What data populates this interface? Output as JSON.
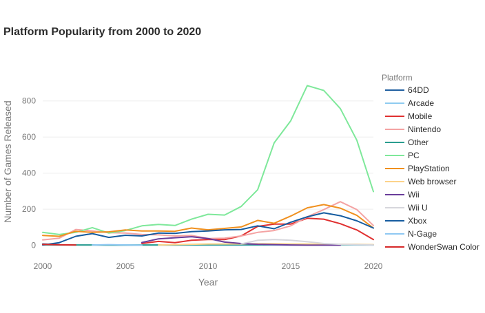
{
  "chart_data": {
    "type": "line",
    "title": "Platform Popularity from 2000 to 2020",
    "xlabel": "Year",
    "ylabel": "Number of Games Released",
    "xlim": [
      2000,
      2020
    ],
    "ylim": [
      -28,
      940
    ],
    "x_ticks": [
      2000,
      2005,
      2010,
      2015,
      2020
    ],
    "y_ticks": [
      0,
      200,
      400,
      600,
      800
    ],
    "grid": true,
    "legend": {
      "title": "Platform",
      "placement": "right"
    },
    "x": [
      2000,
      2001,
      2002,
      2003,
      2004,
      2005,
      2006,
      2007,
      2008,
      2009,
      2010,
      2011,
      2012,
      2013,
      2014,
      2015,
      2016,
      2017,
      2018,
      2019,
      2020
    ],
    "series": [
      {
        "name": "64DD",
        "color": "#1f5fa0",
        "values": [
          8,
          4,
          null,
          null,
          null,
          null,
          null,
          null,
          null,
          null,
          null,
          null,
          null,
          null,
          null,
          null,
          null,
          null,
          null,
          null,
          null
        ]
      },
      {
        "name": "Arcade",
        "color": "#8ecbf0",
        "values": [
          4,
          3,
          2,
          2,
          2,
          2,
          1,
          2,
          1,
          1,
          1,
          1,
          1,
          1,
          1,
          1,
          2,
          3,
          3,
          2,
          1
        ]
      },
      {
        "name": "Mobile",
        "color": "#e03030",
        "values": [
          null,
          null,
          null,
          null,
          null,
          null,
          10,
          22,
          15,
          28,
          32,
          32,
          52,
          105,
          118,
          118,
          150,
          145,
          120,
          85,
          32
        ]
      },
      {
        "name": "Nintendo",
        "color": "#f4a3a3",
        "values": [
          30,
          40,
          88,
          80,
          70,
          68,
          60,
          58,
          52,
          55,
          38,
          40,
          52,
          72,
          82,
          108,
          158,
          198,
          242,
          198,
          110
        ]
      },
      {
        "name": "Other",
        "color": "#2a9d8f",
        "values": [
          3,
          2,
          2,
          2,
          1,
          1,
          2,
          2,
          2,
          3,
          3,
          3,
          3,
          3,
          4,
          5,
          5,
          4,
          4,
          4,
          3
        ]
      },
      {
        "name": "PC",
        "color": "#7ee89a",
        "values": [
          72,
          60,
          72,
          98,
          68,
          82,
          108,
          116,
          110,
          145,
          172,
          168,
          215,
          308,
          568,
          690,
          885,
          858,
          758,
          582,
          298
        ]
      },
      {
        "name": "PlayStation",
        "color": "#f0901e",
        "values": [
          55,
          50,
          78,
          72,
          75,
          85,
          80,
          80,
          78,
          96,
          86,
          94,
          102,
          138,
          122,
          162,
          208,
          226,
          206,
          166,
          96
        ]
      },
      {
        "name": "Web browser",
        "color": "#fcd38a",
        "values": [
          null,
          null,
          null,
          null,
          null,
          null,
          null,
          2,
          4,
          6,
          8,
          8,
          8,
          9,
          9,
          8,
          8,
          6,
          6,
          6,
          4
        ]
      },
      {
        "name": "Wii",
        "color": "#6a3d9a",
        "values": [
          null,
          null,
          null,
          null,
          null,
          null,
          16,
          36,
          42,
          48,
          38,
          18,
          10,
          6,
          4,
          2,
          1,
          1,
          1,
          null,
          null
        ]
      },
      {
        "name": "Wii U",
        "color": "#d6d6dc",
        "values": [
          null,
          null,
          null,
          null,
          null,
          null,
          null,
          null,
          null,
          null,
          null,
          null,
          8,
          28,
          32,
          28,
          20,
          10,
          6,
          4,
          2
        ]
      },
      {
        "name": "Xbox",
        "color": "#155ca0",
        "values": [
          2,
          15,
          50,
          65,
          44,
          56,
          52,
          68,
          66,
          76,
          80,
          86,
          88,
          108,
          92,
          128,
          158,
          180,
          164,
          136,
          96
        ]
      },
      {
        "name": "N-Gage",
        "color": "#8fc8f2",
        "values": [
          null,
          null,
          null,
          2,
          4,
          2,
          1,
          null,
          null,
          null,
          null,
          null,
          null,
          null,
          null,
          null,
          null,
          null,
          null,
          null,
          null
        ]
      },
      {
        "name": "WonderSwan Color",
        "color": "#d62728",
        "values": [
          5,
          3,
          2,
          null,
          null,
          null,
          null,
          null,
          null,
          null,
          null,
          null,
          null,
          null,
          null,
          null,
          null,
          null,
          null,
          null,
          null
        ]
      }
    ]
  }
}
